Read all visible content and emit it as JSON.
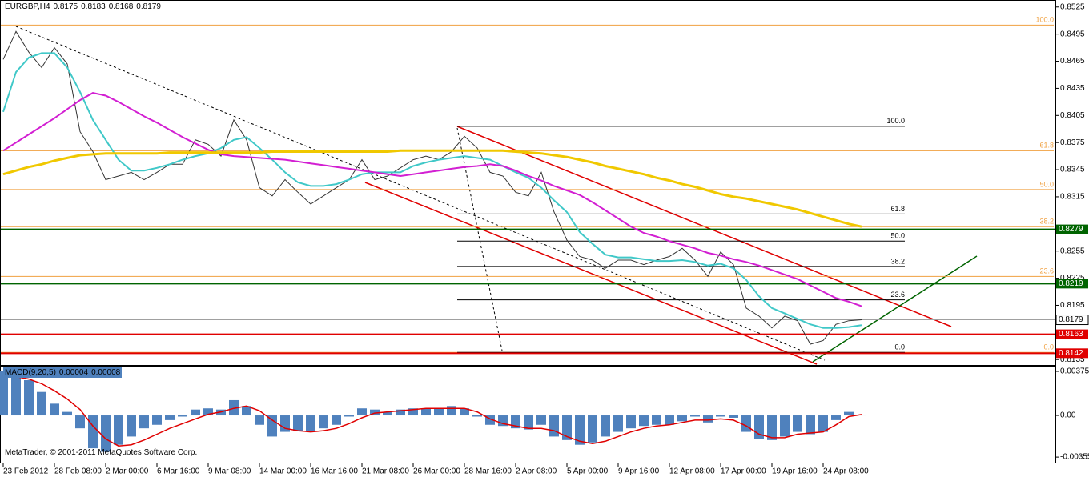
{
  "chart_data": [
    {
      "type": "line",
      "title": "EURGBP,H4",
      "ohlc": [
        0.8175,
        0.8183,
        0.8168,
        0.8179
      ],
      "footer": "MetaTrader, © 2001-2011 MetaQuotes Software Corp.",
      "categories": [
        "23 Feb 2012",
        null,
        null,
        null,
        "28 Feb 08:00",
        null,
        null,
        null,
        "2 Mar 00:00",
        null,
        null,
        null,
        "6 Mar 16:00",
        null,
        null,
        null,
        "9 Mar 08:00",
        null,
        null,
        null,
        "14 Mar 00:00",
        null,
        null,
        null,
        "16 Mar 16:00",
        null,
        null,
        null,
        "21 Mar 08:00",
        null,
        null,
        null,
        "26 Mar 00:00",
        null,
        null,
        null,
        "28 Mar 16:00",
        null,
        null,
        null,
        "2 Apr 08:00",
        null,
        null,
        null,
        "5 Apr 00:00",
        null,
        null,
        null,
        "9 Apr 16:00",
        null,
        null,
        null,
        "12 Apr 08:00",
        null,
        null,
        null,
        "17 Apr 00:00",
        null,
        null,
        null,
        "19 Apr 16:00",
        null,
        null,
        null,
        "24 Apr 08:00",
        null,
        null,
        null
      ],
      "series": [
        {
          "color": "#333333",
          "width": 1,
          "values": [
            0.8467,
            0.8498,
            0.8475,
            0.8458,
            0.848,
            0.8462,
            0.8387,
            0.8365,
            0.8334,
            0.8338,
            0.8342,
            0.8334,
            0.8342,
            0.8351,
            0.8351,
            0.8378,
            0.8373,
            0.836,
            0.84,
            0.8378,
            0.8325,
            0.8316,
            0.8334,
            0.832,
            0.8307,
            0.8316,
            0.8325,
            0.8334,
            0.8356,
            0.8334,
            0.8338,
            0.8347,
            0.8356,
            0.836,
            0.8356,
            0.8365,
            0.8382,
            0.8369,
            0.8342,
            0.8338,
            0.832,
            0.8316,
            0.8342,
            0.8298,
            0.8267,
            0.8249,
            0.8245,
            0.8236,
            0.8245,
            0.8245,
            0.824,
            0.8245,
            0.8249,
            0.8258,
            0.8245,
            0.8227,
            0.8254,
            0.824,
            0.8192,
            0.8183,
            0.817,
            0.8183,
            0.8178,
            0.8152,
            0.8156,
            0.8174,
            0.8178,
            0.8179
          ]
        },
        {
          "color": "#40c8c8",
          "width": 2,
          "values": [
            0.8409,
            0.8453,
            0.8469,
            0.8474,
            0.8474,
            0.8458,
            0.8431,
            0.84,
            0.8378,
            0.8356,
            0.8344,
            0.8344,
            0.8347,
            0.8351,
            0.8356,
            0.836,
            0.8363,
            0.8369,
            0.8378,
            0.8381,
            0.8369,
            0.8356,
            0.8342,
            0.8331,
            0.8327,
            0.8327,
            0.8329,
            0.8334,
            0.834,
            0.8342,
            0.8342,
            0.8342,
            0.8349,
            0.8353,
            0.8356,
            0.8358,
            0.836,
            0.8358,
            0.8356,
            0.8349,
            0.8342,
            0.8336,
            0.8325,
            0.8311,
            0.8298,
            0.8276,
            0.8263,
            0.8251,
            0.8248,
            0.8248,
            0.8246,
            0.8244,
            0.8244,
            0.8245,
            0.8243,
            0.8239,
            0.8241,
            0.8236,
            0.8223,
            0.8205,
            0.8192,
            0.8186,
            0.818,
            0.8174,
            0.817,
            0.817,
            0.8171,
            0.8173
          ]
        },
        {
          "color": "#d21fd2",
          "width": 2,
          "values": [
            0.8366,
            0.8375,
            0.8384,
            0.8393,
            0.8402,
            0.8412,
            0.8422,
            0.843,
            0.8427,
            0.842,
            0.8412,
            0.8404,
            0.8397,
            0.8389,
            0.8381,
            0.8374,
            0.8367,
            0.8362,
            0.836,
            0.8359,
            0.8358,
            0.8357,
            0.8356,
            0.8354,
            0.8352,
            0.835,
            0.8348,
            0.8346,
            0.8344,
            0.8342,
            0.834,
            0.8338,
            0.834,
            0.8342,
            0.8344,
            0.8346,
            0.8348,
            0.8349,
            0.8351,
            0.8349,
            0.8344,
            0.8338,
            0.8333,
            0.8327,
            0.8322,
            0.8317,
            0.8309,
            0.83,
            0.8291,
            0.8282,
            0.8275,
            0.8271,
            0.8266,
            0.8262,
            0.8258,
            0.8253,
            0.825,
            0.8246,
            0.8243,
            0.8239,
            0.8234,
            0.8229,
            0.8224,
            0.8217,
            0.821,
            0.8203,
            0.8199,
            0.8194
          ]
        },
        {
          "color": "#f0c800",
          "width": 3,
          "values": [
            0.834,
            0.8344,
            0.8348,
            0.8351,
            0.8355,
            0.8358,
            0.8361,
            0.8362,
            0.8363,
            0.8363,
            0.8363,
            0.8363,
            0.8363,
            0.8364,
            0.8364,
            0.8364,
            0.8364,
            0.8364,
            0.8364,
            0.8364,
            0.8364,
            0.8365,
            0.8365,
            0.8365,
            0.8365,
            0.8365,
            0.8365,
            0.8365,
            0.8365,
            0.8365,
            0.8365,
            0.8366,
            0.8366,
            0.8366,
            0.8366,
            0.8366,
            0.8366,
            0.8366,
            0.8366,
            0.8366,
            0.8365,
            0.8364,
            0.8363,
            0.8361,
            0.8359,
            0.8356,
            0.8353,
            0.8349,
            0.8346,
            0.8343,
            0.834,
            0.8336,
            0.8333,
            0.8329,
            0.8326,
            0.8322,
            0.8318,
            0.8315,
            0.8313,
            0.831,
            0.8307,
            0.8304,
            0.8301,
            0.8297,
            0.8293,
            0.8289,
            0.8285,
            0.8282
          ]
        }
      ],
      "ylim": [
        0.8129,
        0.8531
      ],
      "yticks": [
        0.8525,
        0.8495,
        0.8465,
        0.8435,
        0.8405,
        0.8375,
        0.8345,
        0.8315,
        0.8255,
        0.8225,
        0.8195,
        0.8135
      ],
      "levels": [
        {
          "value": 0.8279,
          "color": "#006400"
        },
        {
          "value": 0.8219,
          "color": "#006400"
        },
        {
          "value": 0.8163,
          "color": "#e00000"
        },
        {
          "value": 0.8142,
          "color": "#e00000"
        }
      ],
      "fibo": {
        "color": "#f0a040",
        "levels": [
          {
            "label": "100.0",
            "value": 0.8505
          },
          {
            "label": "61.8",
            "value": 0.8366
          },
          {
            "label": "50.0",
            "value": 0.8323
          },
          {
            "label": "38.2",
            "value": 0.8282
          },
          {
            "label": "23.6",
            "value": 0.8227
          },
          {
            "label": "0.0",
            "value": 0.8143
          }
        ]
      },
      "fibo2": {
        "color": "#000000",
        "levels": [
          {
            "label": "100.0",
            "value": 0.8393
          },
          {
            "label": "61.8",
            "value": 0.8296
          },
          {
            "label": "50.0",
            "value": 0.8266
          },
          {
            "label": "38.2",
            "value": 0.8238
          },
          {
            "label": "23.6",
            "value": 0.8201
          },
          {
            "label": "0.0",
            "value": 0.8143
          }
        ]
      }
    },
    {
      "type": "bar",
      "title": "MACD(9,20,5)",
      "series": [
        {
          "type": "bar",
          "color": "#4f81bd",
          "values": [
            0.00375,
            0.0034,
            0.003,
            0.002,
            0.001,
            0.0003,
            -0.0011,
            -0.0028,
            -0.0031,
            -0.0025,
            -0.0018,
            -0.0011,
            -0.0008,
            -0.0004,
            -0.0001,
            0.0005,
            0.0006,
            0.0005,
            0.0013,
            0.0008,
            -0.0008,
            -0.0018,
            -0.0014,
            -0.0013,
            -0.0014,
            -0.0011,
            -0.0008,
            -0.0001,
            0.0006,
            0.0005,
            0.0003,
            0.0005,
            0.0006,
            0.0006,
            0.0006,
            0.0008,
            0.0006,
            -0.0001,
            -0.0008,
            -0.0009,
            -0.0011,
            -0.0012,
            -0.0008,
            -0.0018,
            -0.0021,
            -0.0025,
            -0.0023,
            -0.0018,
            -0.0014,
            -0.0011,
            -0.0009,
            -0.0008,
            -0.0008,
            -0.0005,
            -0.0001,
            -0.0006,
            -0.0001,
            -0.0002,
            -0.0014,
            -0.002,
            -0.0021,
            -0.0018,
            -0.0014,
            -0.0016,
            -0.0014,
            -0.0004,
            0.0003,
            4e-05
          ]
        },
        {
          "type": "line",
          "color": "#e00000",
          "values": [
            0.0034,
            0.0033,
            0.0031,
            0.0027,
            0.0021,
            0.0014,
            0.0005,
            -0.0009,
            -0.002,
            -0.0026,
            -0.0025,
            -0.0021,
            -0.0016,
            -0.0011,
            -0.0007,
            -0.0003,
            0.0001,
            0.0003,
            0.0006,
            0.0008,
            0.0004,
            -0.0004,
            -0.0011,
            -0.0013,
            -0.0014,
            -0.0013,
            -0.0011,
            -0.0007,
            -0.0002,
            0.0002,
            0.0003,
            0.0004,
            0.0005,
            0.0006,
            0.0006,
            0.0006,
            0.0006,
            0.0003,
            -0.0003,
            -0.0007,
            -0.0009,
            -0.0011,
            -0.0011,
            -0.0013,
            -0.0018,
            -0.0022,
            -0.0024,
            -0.0022,
            -0.0018,
            -0.0014,
            -0.0011,
            -0.0009,
            -0.0008,
            -0.0006,
            -0.0004,
            -0.0004,
            -0.0003,
            -0.0004,
            -0.0009,
            -0.0016,
            -0.0019,
            -0.0019,
            -0.0016,
            -0.0015,
            -0.0014,
            -0.0008,
            -0.0001,
            8e-05
          ]
        }
      ],
      "ylim": [
        -0.00402,
        0.00416
      ],
      "yticks": [
        0.00375,
        {
          "value": 0,
          "label": "0.00"
        },
        -0.00355
      ]
    }
  ]
}
